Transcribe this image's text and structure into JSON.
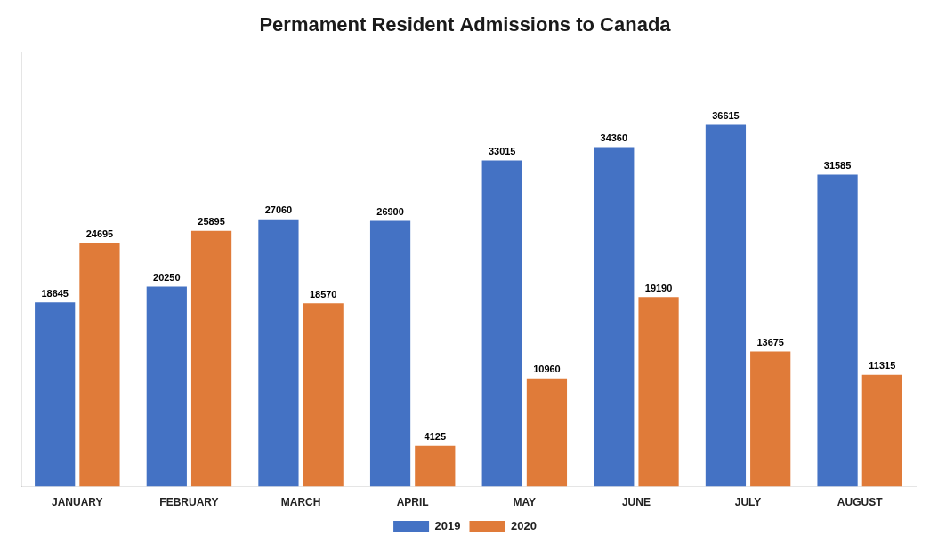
{
  "chart_data": {
    "type": "bar",
    "title": "Permament Resident Admissions to Canada",
    "categories": [
      "JANUARY",
      "FEBRUARY",
      "MARCH",
      "APRIL",
      "MAY",
      "JUNE",
      "JULY",
      "AUGUST"
    ],
    "series": [
      {
        "name": "2019",
        "color": "#4472C4",
        "values": [
          18645,
          20250,
          27060,
          26900,
          33015,
          34360,
          36615,
          31585
        ]
      },
      {
        "name": "2020",
        "color": "#E07B39",
        "values": [
          24695,
          25895,
          18570,
          4125,
          10960,
          19190,
          13675,
          11315
        ]
      }
    ],
    "ylim": [
      0,
      44000
    ],
    "grid": false,
    "legend": "bottom",
    "data_labels": true,
    "tick_labels": "x"
  }
}
